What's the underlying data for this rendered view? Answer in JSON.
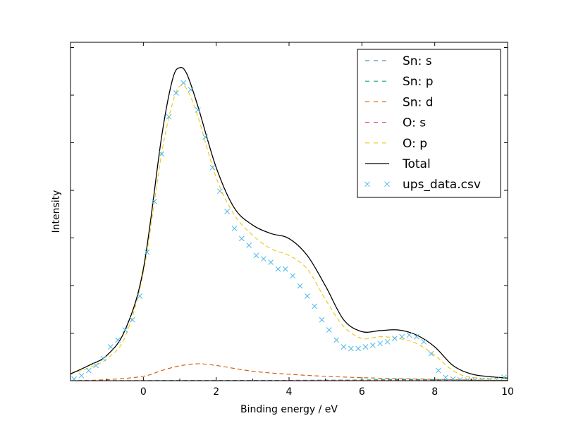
{
  "chart_data": {
    "type": "line",
    "xlabel": "Binding energy / eV",
    "ylabel": "Intensity",
    "xlim": [
      -2,
      10
    ],
    "ylim": [
      0,
      1.0
    ],
    "xticks": [
      "0",
      "2",
      "4",
      "6",
      "8",
      "10"
    ],
    "ytick_labels_shown": false,
    "legend_position": "upper-right",
    "series": [
      {
        "name": "Sn: s",
        "style": "dashed",
        "color": "#1f77b4",
        "x": [
          -2,
          2,
          4,
          6,
          7,
          8,
          10
        ],
        "y": [
          0,
          0.0005,
          0.001,
          0.002,
          0.003,
          0.002,
          0.0005
        ]
      },
      {
        "name": "Sn: p",
        "style": "dashed",
        "color": "#17a589",
        "x": [
          -2,
          2,
          4,
          6,
          7,
          8,
          10
        ],
        "y": [
          0,
          0.0005,
          0.001,
          0.002,
          0.004,
          0.003,
          0.0005
        ]
      },
      {
        "name": "Sn: d",
        "style": "dashed",
        "color": "#d35400",
        "x": [
          -2,
          -1,
          0,
          0.5,
          1,
          1.5,
          2,
          3,
          4,
          5,
          6,
          7,
          8,
          9,
          10
        ],
        "y": [
          0,
          0.003,
          0.013,
          0.03,
          0.044,
          0.05,
          0.045,
          0.028,
          0.019,
          0.013,
          0.009,
          0.006,
          0.004,
          0.002,
          0.001
        ]
      },
      {
        "name": "O: s",
        "style": "dashed",
        "color": "#e05d8b",
        "x": [
          -2,
          2,
          4,
          6,
          8,
          10
        ],
        "y": [
          0,
          0.0003,
          0.0006,
          0.001,
          0.0006,
          0.0002
        ]
      },
      {
        "name": "O: p",
        "style": "dashed",
        "color": "#f1c40f",
        "x": [
          -2,
          -1.5,
          -1,
          -0.5,
          0,
          0.5,
          0.8,
          1,
          1.2,
          1.5,
          2,
          2.5,
          3,
          3.5,
          4,
          4.5,
          5,
          5.5,
          6,
          6.5,
          7,
          7.5,
          8,
          8.5,
          9,
          10
        ],
        "y": [
          0.02,
          0.038,
          0.065,
          0.13,
          0.32,
          0.67,
          0.82,
          0.87,
          0.86,
          0.78,
          0.6,
          0.49,
          0.43,
          0.39,
          0.37,
          0.33,
          0.24,
          0.16,
          0.125,
          0.13,
          0.125,
          0.11,
          0.075,
          0.03,
          0.01,
          0.005
        ]
      },
      {
        "name": "Total",
        "style": "solid",
        "color": "#000000",
        "x": [
          -2,
          -1.5,
          -1,
          -0.5,
          0,
          0.5,
          0.8,
          1,
          1.2,
          1.5,
          2,
          2.5,
          3,
          3.5,
          4,
          4.5,
          5,
          5.5,
          6,
          6.5,
          7,
          7.5,
          8,
          8.5,
          9,
          9.5,
          10
        ],
        "y": [
          0.02,
          0.045,
          0.075,
          0.15,
          0.33,
          0.72,
          0.89,
          0.925,
          0.905,
          0.81,
          0.63,
          0.51,
          0.46,
          0.435,
          0.42,
          0.37,
          0.28,
          0.18,
          0.145,
          0.148,
          0.15,
          0.135,
          0.1,
          0.045,
          0.02,
          0.012,
          0.008
        ]
      },
      {
        "name": "ups_data.csv",
        "style": "markers",
        "marker": "x",
        "color": "#4db8e8",
        "x": [
          -1.9,
          -1.7,
          -1.5,
          -1.3,
          -1.1,
          -0.9,
          -0.7,
          -0.5,
          -0.3,
          -0.1,
          0.1,
          0.3,
          0.5,
          0.7,
          0.9,
          1.1,
          1.3,
          1.5,
          1.7,
          1.9,
          2.1,
          2.3,
          2.5,
          2.7,
          2.9,
          3.1,
          3.3,
          3.5,
          3.7,
          3.9,
          4.1,
          4.3,
          4.5,
          4.7,
          4.9,
          5.1,
          5.3,
          5.5,
          5.7,
          5.9,
          6.1,
          6.3,
          6.5,
          6.7,
          6.9,
          7.1,
          7.3,
          7.5,
          7.7,
          7.9,
          8.1,
          8.3,
          8.5,
          8.7,
          8.9,
          9.1,
          9.3,
          9.5,
          9.7,
          9.9
        ],
        "y": [
          0.005,
          0.015,
          0.03,
          0.045,
          0.065,
          0.1,
          0.12,
          0.15,
          0.18,
          0.25,
          0.38,
          0.53,
          0.67,
          0.78,
          0.85,
          0.88,
          0.86,
          0.8,
          0.72,
          0.63,
          0.56,
          0.5,
          0.45,
          0.42,
          0.4,
          0.37,
          0.36,
          0.35,
          0.33,
          0.33,
          0.31,
          0.28,
          0.25,
          0.22,
          0.18,
          0.15,
          0.12,
          0.1,
          0.095,
          0.095,
          0.1,
          0.105,
          0.11,
          0.115,
          0.125,
          0.13,
          0.135,
          0.13,
          0.115,
          0.08,
          0.03,
          0.01,
          0.005,
          0.003,
          0.002,
          0.002,
          0.001,
          0.001,
          0.003,
          0.01
        ]
      }
    ]
  }
}
